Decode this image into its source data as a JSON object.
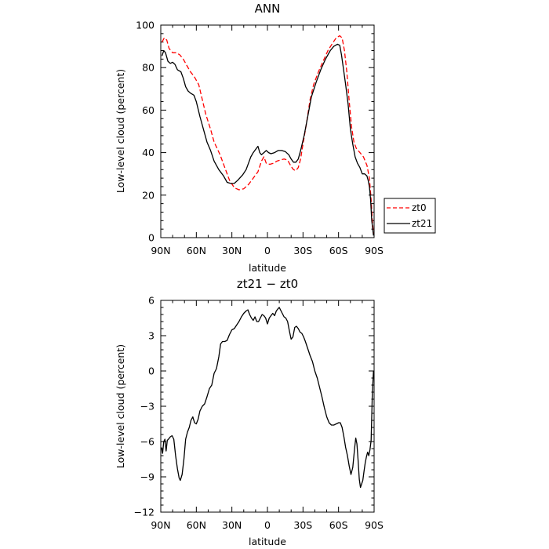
{
  "chart_data": [
    {
      "type": "line",
      "title": "ANN",
      "xlabel": "latitude",
      "ylabel": "Low-level cloud (percent)",
      "xlim": [
        -90,
        90
      ],
      "ylim": [
        0,
        100
      ],
      "x_tick_values": [
        -90,
        -60,
        -30,
        0,
        30,
        60,
        90
      ],
      "x_tick_labels": [
        "90N",
        "60N",
        "30N",
        "0",
        "30S",
        "60S",
        "90S"
      ],
      "y_tick_values": [
        0,
        20,
        40,
        60,
        80,
        100
      ],
      "y_tick_labels": [
        "0",
        "20",
        "40",
        "60",
        "80",
        "100"
      ],
      "legend": {
        "position": "right",
        "entries": [
          "zt0",
          "zt21"
        ]
      },
      "series": [
        {
          "name": "zt0",
          "color": "#ff0000",
          "dash": "dashed",
          "points": [
            [
              -89,
              92
            ],
            [
              -87,
              94
            ],
            [
              -85,
              93
            ],
            [
              -83,
              89
            ],
            [
              -80,
              87
            ],
            [
              -77,
              87
            ],
            [
              -74,
              86
            ],
            [
              -71,
              84
            ],
            [
              -68,
              81
            ],
            [
              -65,
              78
            ],
            [
              -62,
              76
            ],
            [
              -58,
              72
            ],
            [
              -55,
              65
            ],
            [
              -52,
              58
            ],
            [
              -48,
              51
            ],
            [
              -45,
              45
            ],
            [
              -40,
              39
            ],
            [
              -36,
              33
            ],
            [
              -32,
              27
            ],
            [
              -28,
              23.5
            ],
            [
              -24,
              22.5
            ],
            [
              -20,
              23
            ],
            [
              -16,
              25
            ],
            [
              -12,
              28
            ],
            [
              -8,
              31
            ],
            [
              -5,
              36
            ],
            [
              -3,
              38
            ],
            [
              -1,
              35
            ],
            [
              2,
              34.5
            ],
            [
              5,
              35
            ],
            [
              8,
              36
            ],
            [
              11,
              36.5
            ],
            [
              14,
              37
            ],
            [
              17,
              36.5
            ],
            [
              20,
              33.5
            ],
            [
              22,
              32
            ],
            [
              24,
              31.5
            ],
            [
              26,
              33
            ],
            [
              28,
              37
            ],
            [
              30,
              44
            ],
            [
              33,
              54
            ],
            [
              36,
              65
            ],
            [
              39,
              72
            ],
            [
              43,
              78
            ],
            [
              47,
              83
            ],
            [
              51,
              88
            ],
            [
              55,
              91.5
            ],
            [
              58,
              94
            ],
            [
              61,
              95
            ],
            [
              63,
              94
            ],
            [
              65,
              88
            ],
            [
              67,
              78
            ],
            [
              69,
              64
            ],
            [
              71,
              52
            ],
            [
              73,
              45
            ],
            [
              75,
              42
            ],
            [
              78,
              40
            ],
            [
              81,
              38
            ],
            [
              84,
              34
            ],
            [
              86,
              28
            ],
            [
              87.5,
              18
            ],
            [
              88.5,
              8
            ],
            [
              89.5,
              2
            ]
          ]
        },
        {
          "name": "zt21",
          "color": "#000000",
          "dash": "solid",
          "points": [
            [
              -89,
              85.5
            ],
            [
              -87.5,
              88
            ],
            [
              -86,
              87
            ],
            [
              -84,
              83
            ],
            [
              -82,
              82
            ],
            [
              -80,
              82.5
            ],
            [
              -78,
              81.5
            ],
            [
              -76,
              79
            ],
            [
              -73,
              78
            ],
            [
              -71,
              75
            ],
            [
              -69,
              71
            ],
            [
              -67,
              69
            ],
            [
              -65,
              68
            ],
            [
              -62,
              67
            ],
            [
              -60,
              64
            ],
            [
              -57,
              57
            ],
            [
              -54,
              51
            ],
            [
              -51,
              45
            ],
            [
              -48,
              41
            ],
            [
              -45,
              36
            ],
            [
              -41,
              32
            ],
            [
              -37,
              29
            ],
            [
              -34,
              26
            ],
            [
              -31,
              25.5
            ],
            [
              -28,
              25.5
            ],
            [
              -25,
              27
            ],
            [
              -21,
              29.5
            ],
            [
              -18,
              32
            ],
            [
              -16,
              35
            ],
            [
              -14,
              38
            ],
            [
              -12,
              40
            ],
            [
              -10,
              41.5
            ],
            [
              -8,
              43
            ],
            [
              -6.5,
              40
            ],
            [
              -5,
              39
            ],
            [
              -3,
              40
            ],
            [
              -1,
              41
            ],
            [
              1,
              40
            ],
            [
              3,
              39.5
            ],
            [
              6,
              40
            ],
            [
              9,
              41
            ],
            [
              12,
              41
            ],
            [
              15,
              40.5
            ],
            [
              18,
              39
            ],
            [
              20,
              37
            ],
            [
              22,
              35.5
            ],
            [
              24,
              35.5
            ],
            [
              26,
              37
            ],
            [
              28,
              41
            ],
            [
              31,
              48
            ],
            [
              34,
              57
            ],
            [
              37,
              66
            ],
            [
              41,
              73
            ],
            [
              45,
              79
            ],
            [
              49,
              84
            ],
            [
              53,
              88
            ],
            [
              56,
              90
            ],
            [
              59,
              91
            ],
            [
              61,
              90.5
            ],
            [
              62.5,
              86
            ],
            [
              64,
              80
            ],
            [
              66,
              72
            ],
            [
              68,
              63
            ],
            [
              70,
              51
            ],
            [
              72,
              44
            ],
            [
              74,
              38
            ],
            [
              76,
              35
            ],
            [
              78,
              33
            ],
            [
              80,
              30
            ],
            [
              82,
              30
            ],
            [
              84,
              29
            ],
            [
              85,
              27
            ],
            [
              86,
              24
            ],
            [
              87,
              18
            ],
            [
              88,
              8
            ],
            [
              89.5,
              1
            ]
          ]
        }
      ]
    },
    {
      "type": "line",
      "title": "zt21 − zt0",
      "xlabel": "latitude",
      "ylabel": "Low-level cloud (percent)",
      "xlim": [
        -90,
        90
      ],
      "ylim": [
        -12,
        6
      ],
      "x_tick_values": [
        -90,
        -60,
        -30,
        0,
        30,
        60,
        90
      ],
      "x_tick_labels": [
        "90N",
        "60N",
        "30N",
        "0",
        "30S",
        "60S",
        "90S"
      ],
      "y_tick_values": [
        -12,
        -9,
        -6,
        -3,
        0,
        3,
        6
      ],
      "y_tick_labels": [
        "−12",
        "−9",
        "−6",
        "−3",
        "0",
        "3",
        "6"
      ],
      "series": [
        {
          "color": "#000000",
          "dash": "solid",
          "points": [
            [
              -89.5,
              -6.5
            ],
            [
              -88.5,
              -7
            ],
            [
              -87.5,
              -6
            ],
            [
              -86.5,
              -5.8
            ],
            [
              -85.5,
              -6.8
            ],
            [
              -84.5,
              -5.9
            ],
            [
              -83.5,
              -5.8
            ],
            [
              -82,
              -5.6
            ],
            [
              -80.5,
              -5.5
            ],
            [
              -79,
              -5.8
            ],
            [
              -77.5,
              -7.2
            ],
            [
              -76,
              -8.3
            ],
            [
              -74.5,
              -9.1
            ],
            [
              -73.5,
              -9.3
            ],
            [
              -72,
              -8.8
            ],
            [
              -70.5,
              -7.5
            ],
            [
              -69,
              -5.8
            ],
            [
              -67.5,
              -5.2
            ],
            [
              -66,
              -4.8
            ],
            [
              -64.5,
              -4.2
            ],
            [
              -63,
              -3.9
            ],
            [
              -61.5,
              -4.4
            ],
            [
              -60,
              -4.5
            ],
            [
              -58.5,
              -4.1
            ],
            [
              -57,
              -3.4
            ],
            [
              -55,
              -3
            ],
            [
              -53,
              -2.8
            ],
            [
              -51,
              -2.2
            ],
            [
              -49,
              -1.5
            ],
            [
              -47,
              -1.2
            ],
            [
              -45,
              -0.2
            ],
            [
              -43,
              0.2
            ],
            [
              -41,
              1.2
            ],
            [
              -39.5,
              2.3
            ],
            [
              -38,
              2.5
            ],
            [
              -36,
              2.5
            ],
            [
              -34,
              2.6
            ],
            [
              -32,
              3.1
            ],
            [
              -30,
              3.5
            ],
            [
              -28,
              3.6
            ],
            [
              -26,
              3.9
            ],
            [
              -24,
              4.2
            ],
            [
              -22,
              4.6
            ],
            [
              -20,
              4.9
            ],
            [
              -18,
              5.1
            ],
            [
              -16.5,
              5.2
            ],
            [
              -15,
              4.8
            ],
            [
              -13.5,
              4.5
            ],
            [
              -12,
              4.3
            ],
            [
              -10.5,
              4.6
            ],
            [
              -9,
              4.2
            ],
            [
              -7.5,
              4.2
            ],
            [
              -6,
              4.5
            ],
            [
              -4.5,
              4.8
            ],
            [
              -3,
              4.7
            ],
            [
              -1.5,
              4.5
            ],
            [
              0,
              4
            ],
            [
              1.5,
              4.5
            ],
            [
              3,
              4.7
            ],
            [
              4.5,
              4.9
            ],
            [
              6,
              4.7
            ],
            [
              7.5,
              5.1
            ],
            [
              9,
              5.3
            ],
            [
              10,
              5.4
            ],
            [
              11,
              5.2
            ],
            [
              12.5,
              4.9
            ],
            [
              14,
              4.6
            ],
            [
              15.5,
              4.5
            ],
            [
              17,
              4.2
            ],
            [
              18.5,
              3.4
            ],
            [
              20,
              2.7
            ],
            [
              21.5,
              2.9
            ],
            [
              23,
              3.7
            ],
            [
              24.5,
              3.8
            ],
            [
              26,
              3.6
            ],
            [
              27.5,
              3.3
            ],
            [
              29,
              3.2
            ],
            [
              30.5,
              2.9
            ],
            [
              32,
              2.5
            ],
            [
              34,
              1.9
            ],
            [
              36,
              1.3
            ],
            [
              38,
              0.8
            ],
            [
              40,
              0
            ],
            [
              42,
              -0.6
            ],
            [
              44,
              -1.4
            ],
            [
              46,
              -2.2
            ],
            [
              48,
              -3.1
            ],
            [
              50,
              -3.9
            ],
            [
              52,
              -4.4
            ],
            [
              54,
              -4.6
            ],
            [
              56,
              -4.6
            ],
            [
              58,
              -4.5
            ],
            [
              60,
              -4.4
            ],
            [
              61.5,
              -4.4
            ],
            [
              63,
              -4.8
            ],
            [
              64.5,
              -5.6
            ],
            [
              66,
              -6.5
            ],
            [
              67.5,
              -7.2
            ],
            [
              69,
              -8.1
            ],
            [
              70.5,
              -8.8
            ],
            [
              72,
              -8.2
            ],
            [
              73.5,
              -6.6
            ],
            [
              74.5,
              -5.7
            ],
            [
              75.5,
              -6.2
            ],
            [
              76.5,
              -7.6
            ],
            [
              77.5,
              -9.2
            ],
            [
              78.5,
              -9.9
            ],
            [
              79.5,
              -9.6
            ],
            [
              80.5,
              -9.3
            ],
            [
              81.5,
              -8.5
            ],
            [
              82.5,
              -7.8
            ],
            [
              83.5,
              -7.3
            ],
            [
              84.5,
              -6.9
            ],
            [
              85.5,
              -7.2
            ],
            [
              86.5,
              -6.7
            ],
            [
              87.5,
              -5.9
            ],
            [
              88.5,
              -2
            ],
            [
              89.5,
              0
            ]
          ]
        }
      ]
    }
  ]
}
